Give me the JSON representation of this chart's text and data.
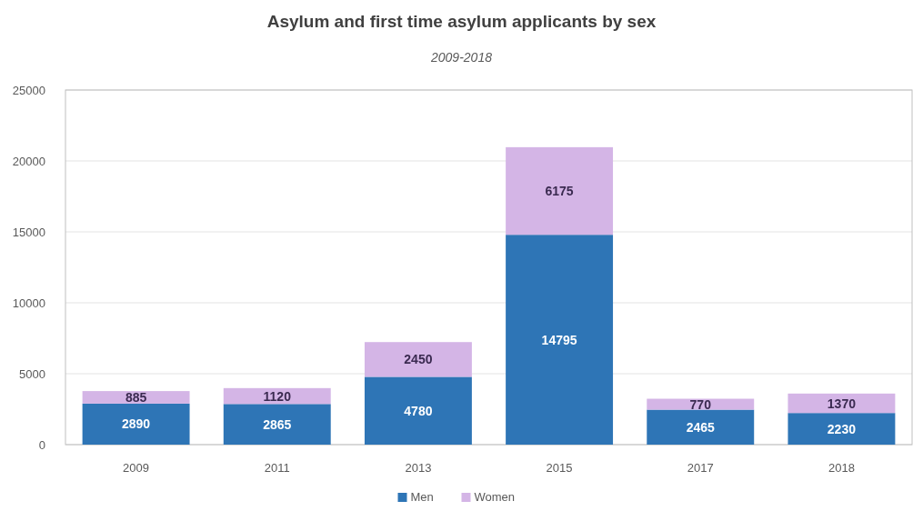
{
  "chart_data": {
    "type": "bar",
    "title": "Asylum and first time asylum applicants by sex",
    "subtitle": "2009-2018",
    "categories": [
      "2009",
      "2011",
      "2013",
      "2015",
      "2017",
      "2018"
    ],
    "stacked": true,
    "data_labels": true,
    "grid": "y",
    "legend": "bottom",
    "ylim": [
      0,
      25000
    ],
    "yticks": [
      0,
      5000,
      10000,
      15000,
      20000,
      25000
    ],
    "series": [
      {
        "name": "Men",
        "color": "#2e75b6",
        "values": [
          2890,
          2865,
          4780,
          14795,
          2465,
          2230
        ]
      },
      {
        "name": "Women",
        "color": "#d4b5e6",
        "values": [
          885,
          1120,
          2450,
          6175,
          770,
          1370
        ]
      }
    ]
  }
}
